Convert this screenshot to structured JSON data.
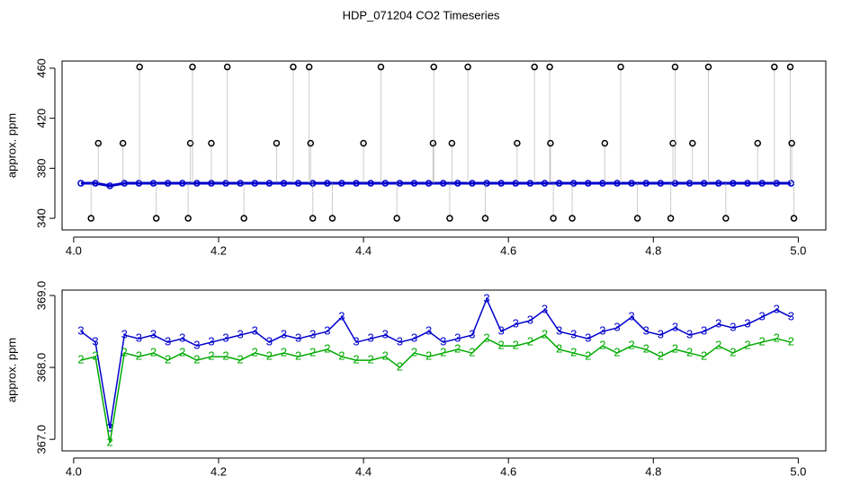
{
  "chart_data": [
    {
      "type": "scatter",
      "title": "HDP_071204  CO2 Timeseries",
      "y_label": "approx. ppm",
      "xlim": [
        3.984,
        5.038
      ],
      "ylim": [
        330.7,
        465.7
      ],
      "xticks": [
        {
          "value": 4,
          "label": "4.0"
        },
        4.2,
        4.4,
        4.6,
        4.8,
        {
          "value": 5,
          "label": "5.0"
        }
      ],
      "yticks": [
        340,
        380,
        420,
        460
      ],
      "series": [
        {
          "color": "#0000cc",
          "marker": "circle",
          "connect": true,
          "x": [
            4.01,
            4.03,
            4.05,
            4.07,
            4.09,
            4.11,
            4.13,
            4.15,
            4.17,
            4.19,
            4.21,
            4.23,
            4.25,
            4.27,
            4.29,
            4.31,
            4.33,
            4.35,
            4.37,
            4.39,
            4.41,
            4.43,
            4.45,
            4.47,
            4.49,
            4.51,
            4.53,
            4.55,
            4.57,
            4.59,
            4.61,
            4.63,
            4.65,
            4.67,
            4.69,
            4.71,
            4.73,
            4.75,
            4.77,
            4.79,
            4.81,
            4.83,
            4.85,
            4.87,
            4.89,
            4.91,
            4.93,
            4.95,
            4.97,
            4.99
          ],
          "values": [
            368,
            368,
            366,
            368,
            368,
            368,
            368,
            368,
            368,
            368,
            368,
            368,
            368,
            368,
            368,
            368,
            368,
            368,
            368,
            368,
            368,
            368,
            368,
            368,
            368,
            368,
            368,
            368,
            368,
            368,
            368,
            368,
            368,
            368,
            368,
            368,
            368,
            368,
            368,
            368,
            368,
            368,
            368,
            368,
            368,
            368,
            368,
            368,
            368,
            368
          ]
        },
        {
          "color": "#000000",
          "marker": "circle",
          "connect": false,
          "x": [
            4.024,
            4.034,
            4.068,
            4.091,
            4.114,
            4.158,
            4.161,
            4.164,
            4.19,
            4.212,
            4.235,
            4.28,
            4.303,
            4.325,
            4.327,
            4.33,
            4.357,
            4.4,
            4.424,
            4.446,
            4.496,
            4.497,
            4.519,
            4.522,
            4.544,
            4.568,
            4.612,
            4.636,
            4.657,
            4.658,
            4.662,
            4.688,
            4.733,
            4.755,
            4.778,
            4.824,
            4.827,
            4.83,
            4.854,
            4.876,
            4.9,
            4.944,
            4.967,
            4.989,
            4.991,
            4.994
          ],
          "values": [
            340,
            400,
            400,
            461,
            340,
            340,
            400,
            461,
            400,
            461,
            340,
            400,
            461,
            461,
            400,
            340,
            340,
            400,
            461,
            340,
            400,
            461,
            340,
            400,
            461,
            340,
            400,
            461,
            461,
            400,
            340,
            340,
            400,
            461,
            340,
            340,
            400,
            461,
            400,
            461,
            340,
            400,
            461,
            461,
            400,
            340
          ]
        }
      ]
    },
    {
      "type": "line",
      "y_label": "approx. ppm",
      "xlim": [
        3.984,
        5.038
      ],
      "ylim": [
        366.84,
        369.075
      ],
      "xticks": [
        {
          "value": 4,
          "label": "4.0"
        },
        4.2,
        4.4,
        4.6,
        4.8,
        {
          "value": 5,
          "label": "5.0"
        }
      ],
      "yticks": [
        {
          "value": 367,
          "label": "367.0"
        },
        {
          "value": 368,
          "label": "368.0"
        },
        {
          "value": 369,
          "label": "369.0"
        }
      ],
      "x": [
        4.01,
        4.03,
        4.05,
        4.07,
        4.09,
        4.11,
        4.13,
        4.15,
        4.17,
        4.19,
        4.21,
        4.23,
        4.25,
        4.27,
        4.29,
        4.31,
        4.33,
        4.35,
        4.37,
        4.39,
        4.41,
        4.43,
        4.45,
        4.47,
        4.49,
        4.51,
        4.53,
        4.55,
        4.57,
        4.59,
        4.61,
        4.63,
        4.65,
        4.67,
        4.69,
        4.71,
        4.73,
        4.75,
        4.77,
        4.79,
        4.81,
        4.83,
        4.85,
        4.87,
        4.89,
        4.91,
        4.93,
        4.95,
        4.97,
        4.99
      ],
      "series": [
        {
          "color": "#0000cc",
          "marker": "3",
          "connect": true,
          "values": [
            368.5,
            368.35,
            367.15,
            368.45,
            368.4,
            368.45,
            368.35,
            368.4,
            368.3,
            368.35,
            368.4,
            368.45,
            368.5,
            368.35,
            368.45,
            368.4,
            368.45,
            368.5,
            368.7,
            368.35,
            368.4,
            368.45,
            368.35,
            368.4,
            368.5,
            368.35,
            368.4,
            368.45,
            368.95,
            368.5,
            368.6,
            368.65,
            368.8,
            368.5,
            368.45,
            368.4,
            368.5,
            368.55,
            368.7,
            368.5,
            368.45,
            368.55,
            368.45,
            368.5,
            368.6,
            368.55,
            368.6,
            368.7,
            368.8,
            368.7
          ]
        },
        {
          "color": "#00aa00",
          "marker": "2",
          "connect": true,
          "values": [
            368.1,
            368.15,
            366.95,
            368.2,
            368.15,
            368.2,
            368.1,
            368.2,
            368.1,
            368.15,
            368.15,
            368.1,
            368.2,
            368.15,
            368.2,
            368.15,
            368.2,
            368.25,
            368.15,
            368.1,
            368.1,
            368.15,
            368.0,
            368.2,
            368.15,
            368.2,
            368.25,
            368.2,
            368.4,
            368.3,
            368.3,
            368.35,
            368.45,
            368.25,
            368.2,
            368.15,
            368.3,
            368.2,
            368.3,
            368.25,
            368.15,
            368.25,
            368.2,
            368.15,
            368.3,
            368.2,
            368.3,
            368.35,
            368.4,
            368.35
          ]
        }
      ]
    }
  ]
}
